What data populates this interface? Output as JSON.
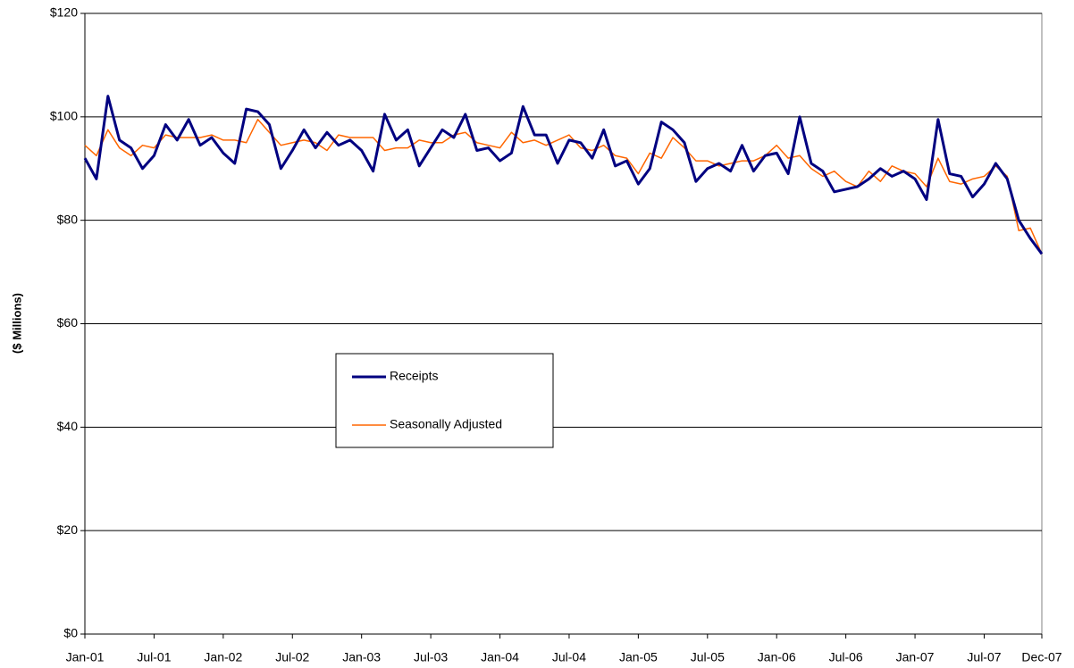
{
  "chart_data": {
    "type": "line",
    "y_label": "($ Millions)",
    "categories": [
      "Jan-01",
      null,
      null,
      null,
      null,
      null,
      "Jul-01",
      null,
      null,
      null,
      null,
      null,
      "Jan-02",
      null,
      null,
      null,
      null,
      null,
      "Jul-02",
      null,
      null,
      null,
      null,
      null,
      "Jan-03",
      null,
      null,
      null,
      null,
      null,
      "Jul-03",
      null,
      null,
      null,
      null,
      null,
      "Jan-04",
      null,
      null,
      null,
      null,
      null,
      "Jul-04",
      null,
      null,
      null,
      null,
      null,
      "Jan-05",
      null,
      null,
      null,
      null,
      null,
      "Jul-05",
      null,
      null,
      null,
      null,
      null,
      "Jan-06",
      null,
      null,
      null,
      null,
      null,
      "Jul-06",
      null,
      null,
      null,
      null,
      null,
      "Jan-07",
      null,
      null,
      null,
      null,
      null,
      "Jul-07",
      null,
      null,
      null,
      null,
      "Dec-07"
    ],
    "series": [
      {
        "name": "Receipts",
        "color": "#000080",
        "values": [
          92,
          88,
          104,
          95.5,
          94,
          90,
          92.5,
          98.5,
          95.5,
          99.5,
          94.5,
          96,
          93,
          91,
          101.5,
          101,
          98.5,
          90,
          93.5,
          97.5,
          94,
          97,
          94.5,
          95.5,
          93.5,
          89.5,
          100.5,
          95.5,
          97.5,
          90.5,
          94,
          97.5,
          96,
          100.5,
          93.5,
          94,
          91.5,
          93,
          102,
          96.5,
          96.5,
          91,
          95.5,
          95,
          92,
          97.5,
          90.5,
          91.5,
          87,
          90,
          99,
          97.5,
          95,
          87.5,
          90,
          91,
          89.5,
          94.5,
          89.5,
          92.5,
          93,
          89,
          100,
          91,
          89.5,
          85.5,
          86,
          86.5,
          88,
          90,
          88.5,
          89.5,
          88,
          84,
          99.5,
          89,
          88.5,
          84.5,
          87,
          91,
          88,
          80,
          76.5,
          73.5
        ]
      },
      {
        "name": "Seasonally Adjusted",
        "color": "#ff6600",
        "values": [
          94.5,
          92.5,
          97.5,
          94,
          92.5,
          94.5,
          94,
          96.5,
          96,
          96,
          96,
          96.5,
          95.5,
          95.5,
          95,
          99.5,
          97,
          94.5,
          95,
          95.5,
          95,
          93.5,
          96.5,
          96,
          96,
          96,
          93.5,
          94,
          94,
          95.5,
          95,
          95,
          96.5,
          97,
          95,
          94.5,
          94,
          97,
          95,
          95.5,
          94.5,
          95.5,
          96.5,
          94,
          93.5,
          94.5,
          92.5,
          92,
          89,
          93,
          92,
          96,
          94,
          91.5,
          91.5,
          90.5,
          91,
          91.5,
          91.5,
          92.5,
          94.5,
          92,
          92.5,
          90,
          88.5,
          89.5,
          87.5,
          86.5,
          89.5,
          87.5,
          90.5,
          89.5,
          89,
          86.5,
          92,
          87.5,
          87,
          88,
          88.5,
          90.5,
          88.5,
          78,
          78.5,
          73.5
        ]
      }
    ],
    "ylim": [
      0,
      120
    ],
    "yticks": [
      {
        "value": 0,
        "label": "$0"
      },
      {
        "value": 20,
        "label": "$20"
      },
      {
        "value": 40,
        "label": "$40"
      },
      {
        "value": 60,
        "label": "$60"
      },
      {
        "value": 80,
        "label": "$80"
      },
      {
        "value": 100,
        "label": "$100"
      },
      {
        "value": 120,
        "label": "$120"
      }
    ],
    "grid": true
  }
}
